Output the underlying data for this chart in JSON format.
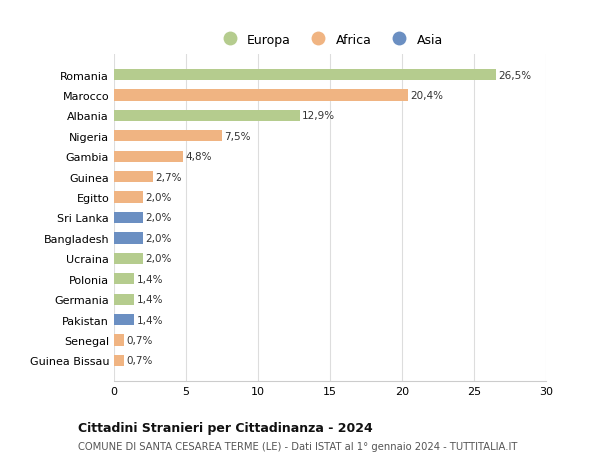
{
  "countries": [
    "Guinea Bissau",
    "Senegal",
    "Pakistan",
    "Germania",
    "Polonia",
    "Ucraina",
    "Bangladesh",
    "Sri Lanka",
    "Egitto",
    "Guinea",
    "Gambia",
    "Nigeria",
    "Albania",
    "Marocco",
    "Romania"
  ],
  "values": [
    0.7,
    0.7,
    1.4,
    1.4,
    1.4,
    2.0,
    2.0,
    2.0,
    2.0,
    2.7,
    4.8,
    7.5,
    12.9,
    20.4,
    26.5
  ],
  "labels": [
    "0,7%",
    "0,7%",
    "1,4%",
    "1,4%",
    "1,4%",
    "2,0%",
    "2,0%",
    "2,0%",
    "2,0%",
    "2,7%",
    "4,8%",
    "7,5%",
    "12,9%",
    "20,4%",
    "26,5%"
  ],
  "continents": [
    "Africa",
    "Africa",
    "Asia",
    "Europa",
    "Europa",
    "Europa",
    "Asia",
    "Asia",
    "Africa",
    "Africa",
    "Africa",
    "Africa",
    "Europa",
    "Africa",
    "Europa"
  ],
  "colors": {
    "Europa": "#b5cc8e",
    "Africa": "#f0b482",
    "Asia": "#6b8fc2"
  },
  "title1": "Cittadini Stranieri per Cittadinanza - 2024",
  "title2": "COMUNE DI SANTA CESAREA TERME (LE) - Dati ISTAT al 1° gennaio 2024 - TUTTITALIA.IT",
  "xlim": [
    0,
    30
  ],
  "xticks": [
    0,
    5,
    10,
    15,
    20,
    25,
    30
  ],
  "background_color": "#ffffff",
  "grid_color": "#dddddd",
  "bar_height": 0.55
}
